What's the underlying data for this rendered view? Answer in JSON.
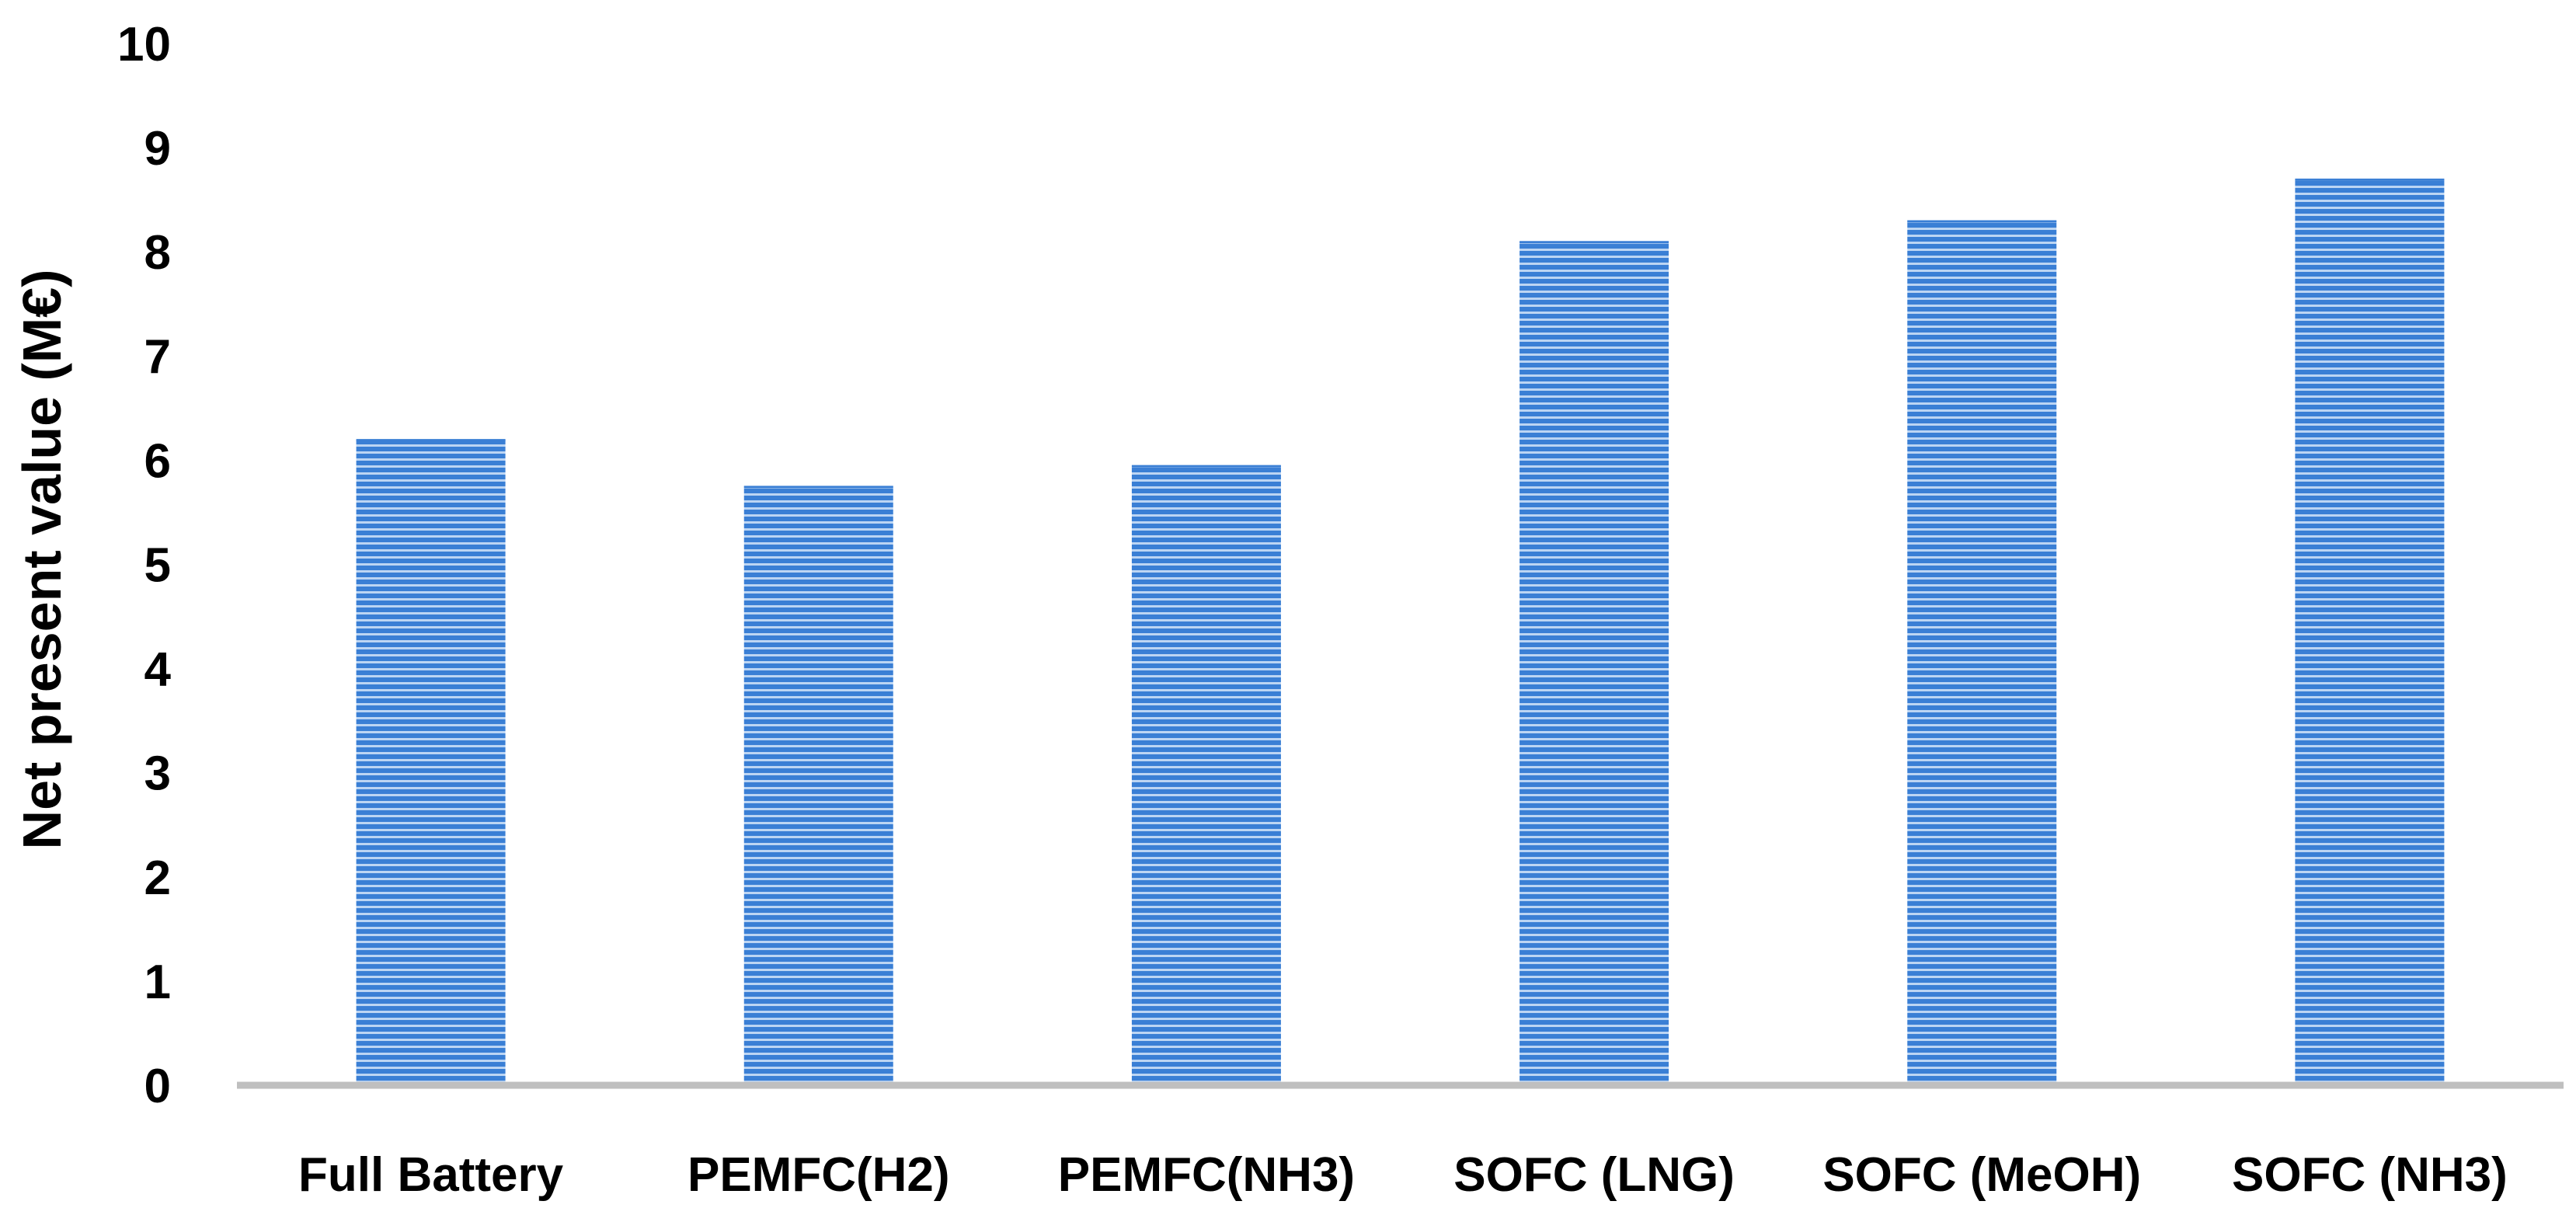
{
  "chart_data": {
    "type": "bar",
    "title": "",
    "xlabel": "",
    "ylabel": "Net present value (M€)",
    "categories": [
      "Full Battery",
      "PEMFC(H2)",
      "PEMFC(NH3)",
      "SOFC (LNG)",
      "SOFC (MeOH)",
      "SOFC (NH3)"
    ],
    "values": [
      6.2,
      5.75,
      5.95,
      8.1,
      8.3,
      8.7
    ],
    "ylim": [
      0,
      10
    ],
    "yticks": [
      "0",
      "1",
      "2",
      "3",
      "4",
      "5",
      "6",
      "7",
      "8",
      "9",
      "10"
    ],
    "grid": false,
    "legend": "none",
    "colors": {
      "bar": "#3a7fd5",
      "bar_stripe": "#bcd5f3",
      "axis": "#bfbfbf"
    }
  }
}
